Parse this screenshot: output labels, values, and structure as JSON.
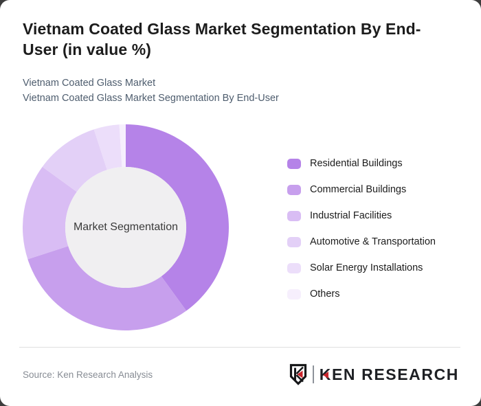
{
  "card": {
    "title": "Vietnam Coated Glass Market Segmentation By End-\nUser (in value %)",
    "subtitle_line1": "Vietnam Coated Glass Market",
    "subtitle_line2": "Vietnam Coated Glass Market Segmentation By End-User"
  },
  "chart_data": {
    "type": "pie",
    "variant": "donut",
    "title": "Vietnam Coated Glass Market Segmentation By End-User (in value %)",
    "unit": "value %",
    "center_label": "Market Segmentation",
    "start_angle_deg": 0,
    "inner_radius_ratio": 0.587,
    "inner_circle_color": "#f0eff1",
    "legend_position": "right",
    "segments": [
      {
        "label": "Residential Buildings",
        "value": 40,
        "color": "#b583e8"
      },
      {
        "label": "Commercial Buildings",
        "value": 30,
        "color": "#c79fed"
      },
      {
        "label": "Industrial Facilities",
        "value": 15,
        "color": "#d9bdf4"
      },
      {
        "label": "Automotive & Transportation",
        "value": 10,
        "color": "#e3d0f7"
      },
      {
        "label": "Solar Energy Installations",
        "value": 4,
        "color": "#ecdefa"
      },
      {
        "label": "Others",
        "value": 1,
        "color": "#f6effd"
      }
    ]
  },
  "footer": {
    "source": "Source: Ken Research Analysis",
    "logo_k": "K",
    "logo_rest": "EN RESEARCH",
    "logo_red": "#c9252c",
    "logo_dark": "#1e2024"
  }
}
